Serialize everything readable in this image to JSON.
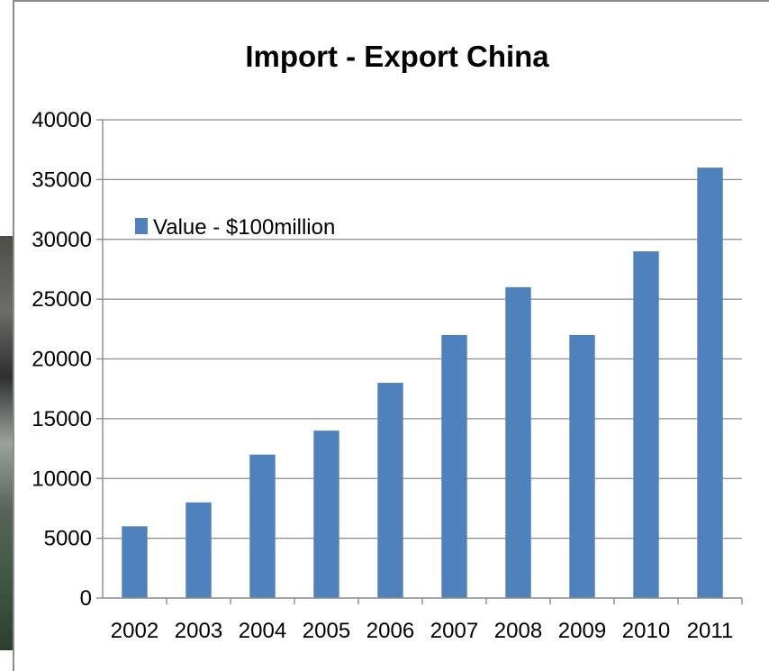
{
  "chart_data": {
    "type": "bar",
    "title": "Import - Export China",
    "xlabel": "",
    "ylabel": "",
    "categories": [
      "2002",
      "2003",
      "2004",
      "2005",
      "2006",
      "2007",
      "2008",
      "2009",
      "2010",
      "2011"
    ],
    "series": [
      {
        "name": "Value - $100million",
        "color": "#4f81bd",
        "values": [
          6000,
          8000,
          12000,
          14000,
          18000,
          22000,
          26000,
          22000,
          29000,
          36000
        ]
      }
    ],
    "ylim": [
      0,
      40000
    ],
    "yticks": [
      "0",
      "5000",
      "10000",
      "15000",
      "20000",
      "25000",
      "30000",
      "35000",
      "40000"
    ],
    "grid": true,
    "legend_position": "top-left"
  }
}
